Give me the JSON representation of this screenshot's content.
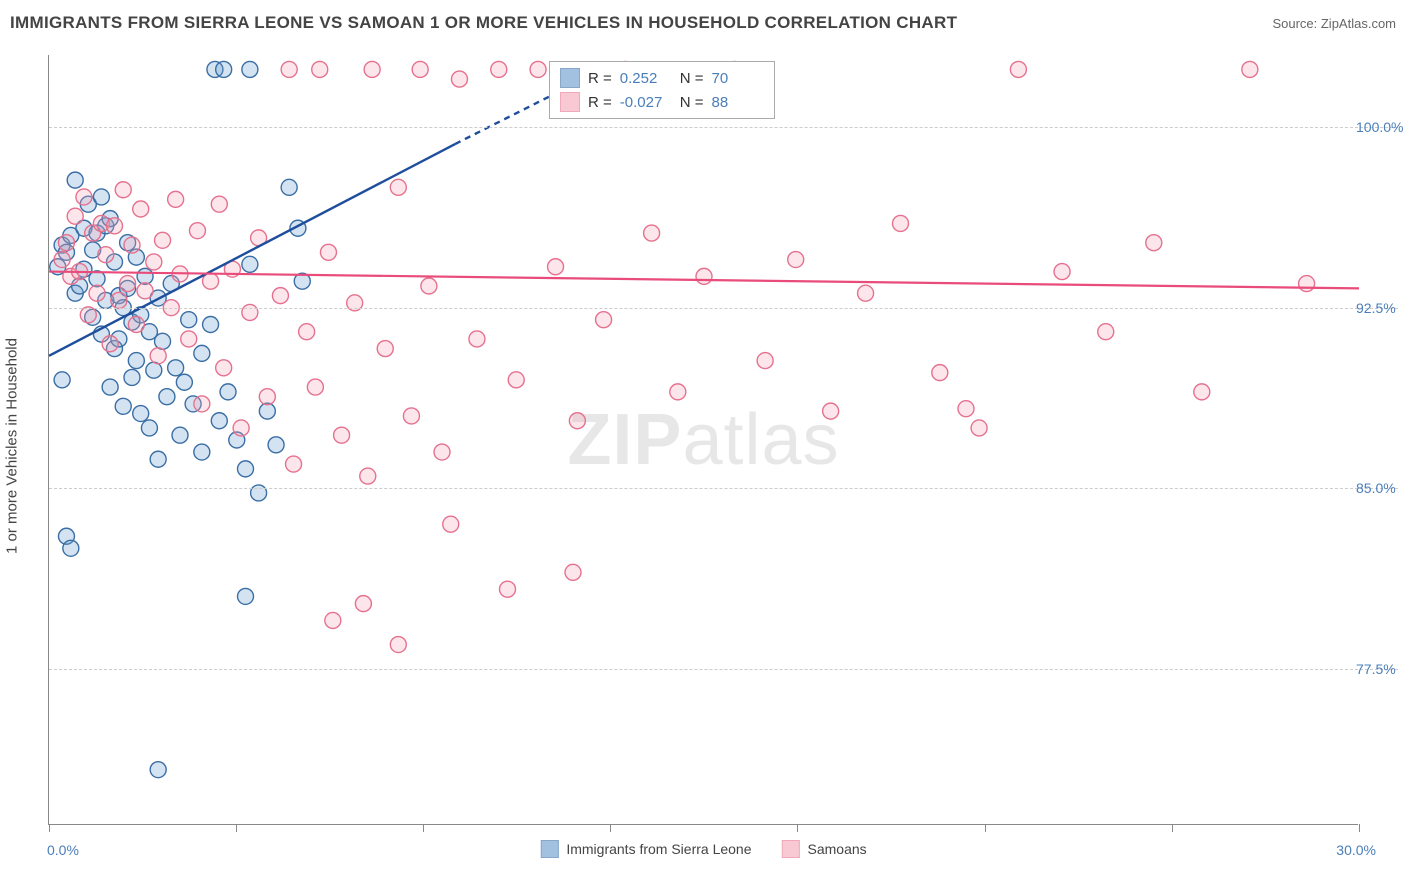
{
  "title": "IMMIGRANTS FROM SIERRA LEONE VS SAMOAN 1 OR MORE VEHICLES IN HOUSEHOLD CORRELATION CHART",
  "source": "Source: ZipAtlas.com",
  "watermark_bold": "ZIP",
  "watermark_rest": "atlas",
  "ylabel": "1 or more Vehicles in Household",
  "chart": {
    "type": "scatter",
    "background_color": "#ffffff",
    "grid_color": "#cccccc",
    "axis_color": "#888888",
    "label_color": "#4a7ebb",
    "text_color": "#444444",
    "xlim": [
      0,
      30
    ],
    "ylim": [
      71,
      103
    ],
    "xtick_labels": [
      "0.0%",
      "30.0%"
    ],
    "ytick_positions": [
      77.5,
      85.0,
      92.5,
      100.0
    ],
    "ytick_labels": [
      "77.5%",
      "85.0%",
      "92.5%",
      "100.0%"
    ],
    "xtick_positions": [
      0,
      4.28,
      8.57,
      12.85,
      17.14,
      21.43,
      25.71,
      30
    ],
    "marker_radius": 8,
    "marker_fill_opacity": 0.28,
    "marker_stroke_width": 1.4,
    "series": [
      {
        "name": "Immigrants from Sierra Leone",
        "color": "#6699cc",
        "stroke": "#3a6ea5",
        "R": "0.252",
        "N": "70",
        "regression": {
          "x1": 0,
          "y1": 90.5,
          "x2": 9.3,
          "y2": 99.3,
          "dash_from_x": 10.5,
          "dash_to_x": 12.8,
          "dash_to_y": 102.5,
          "stroke": "#1f4e9c",
          "width": 2.4
        },
        "points": [
          [
            0.2,
            94.2
          ],
          [
            0.3,
            95.1
          ],
          [
            0.4,
            94.8
          ],
          [
            0.5,
            95.5
          ],
          [
            0.6,
            97.8
          ],
          [
            0.6,
            93.1
          ],
          [
            0.7,
            93.4
          ],
          [
            0.8,
            95.8
          ],
          [
            0.8,
            94.1
          ],
          [
            0.9,
            96.8
          ],
          [
            1.0,
            92.1
          ],
          [
            1.0,
            94.9
          ],
          [
            1.1,
            95.6
          ],
          [
            1.1,
            93.7
          ],
          [
            1.2,
            91.4
          ],
          [
            1.2,
            97.1
          ],
          [
            1.3,
            95.9
          ],
          [
            1.3,
            92.8
          ],
          [
            1.4,
            89.2
          ],
          [
            1.4,
            96.2
          ],
          [
            1.5,
            94.4
          ],
          [
            1.5,
            90.8
          ],
          [
            1.6,
            93.0
          ],
          [
            1.6,
            91.2
          ],
          [
            1.7,
            92.5
          ],
          [
            1.7,
            88.4
          ],
          [
            1.8,
            95.2
          ],
          [
            1.8,
            93.3
          ],
          [
            1.9,
            91.9
          ],
          [
            1.9,
            89.6
          ],
          [
            2.0,
            94.6
          ],
          [
            2.0,
            90.3
          ],
          [
            2.1,
            92.2
          ],
          [
            2.1,
            88.1
          ],
          [
            2.2,
            93.8
          ],
          [
            2.3,
            91.5
          ],
          [
            2.3,
            87.5
          ],
          [
            2.4,
            89.9
          ],
          [
            2.5,
            92.9
          ],
          [
            2.5,
            86.2
          ],
          [
            2.6,
            91.1
          ],
          [
            2.7,
            88.8
          ],
          [
            2.8,
            93.5
          ],
          [
            2.9,
            90.0
          ],
          [
            3.0,
            87.2
          ],
          [
            3.1,
            89.4
          ],
          [
            3.2,
            92.0
          ],
          [
            3.3,
            88.5
          ],
          [
            3.5,
            90.6
          ],
          [
            3.5,
            86.5
          ],
          [
            3.7,
            91.8
          ],
          [
            3.9,
            87.8
          ],
          [
            4.1,
            89.0
          ],
          [
            4.3,
            87.0
          ],
          [
            4.5,
            85.8
          ],
          [
            4.8,
            84.8
          ],
          [
            5.0,
            88.2
          ],
          [
            5.2,
            86.8
          ],
          [
            3.8,
            102.4
          ],
          [
            4.0,
            102.4
          ],
          [
            4.6,
            102.4
          ],
          [
            2.5,
            73.3
          ],
          [
            0.4,
            83.0
          ],
          [
            0.5,
            82.5
          ],
          [
            4.5,
            80.5
          ],
          [
            4.6,
            94.3
          ],
          [
            5.5,
            97.5
          ],
          [
            5.7,
            95.8
          ],
          [
            5.8,
            93.6
          ],
          [
            0.3,
            89.5
          ]
        ]
      },
      {
        "name": "Samoans",
        "color": "#f4a6b7",
        "stroke": "#e6718f",
        "R": "-0.027",
        "N": "88",
        "regression": {
          "x1": 0,
          "y1": 94.0,
          "x2": 30,
          "y2": 93.3,
          "stroke": "#e94b7a",
          "width": 2.2
        },
        "points": [
          [
            0.3,
            94.5
          ],
          [
            0.4,
            95.2
          ],
          [
            0.5,
            93.8
          ],
          [
            0.6,
            96.3
          ],
          [
            0.7,
            94.0
          ],
          [
            0.8,
            97.1
          ],
          [
            0.9,
            92.2
          ],
          [
            1.0,
            95.6
          ],
          [
            1.1,
            93.1
          ],
          [
            1.2,
            96.0
          ],
          [
            1.3,
            94.7
          ],
          [
            1.4,
            91.0
          ],
          [
            1.5,
            95.9
          ],
          [
            1.6,
            92.8
          ],
          [
            1.7,
            97.4
          ],
          [
            1.8,
            93.5
          ],
          [
            1.9,
            95.1
          ],
          [
            2.0,
            91.8
          ],
          [
            2.1,
            96.6
          ],
          [
            2.2,
            93.2
          ],
          [
            2.4,
            94.4
          ],
          [
            2.5,
            90.5
          ],
          [
            2.6,
            95.3
          ],
          [
            2.8,
            92.5
          ],
          [
            2.9,
            97.0
          ],
          [
            3.0,
            93.9
          ],
          [
            3.2,
            91.2
          ],
          [
            3.4,
            95.7
          ],
          [
            3.5,
            88.5
          ],
          [
            3.7,
            93.6
          ],
          [
            3.9,
            96.8
          ],
          [
            4.0,
            90.0
          ],
          [
            4.2,
            94.1
          ],
          [
            4.4,
            87.5
          ],
          [
            4.6,
            92.3
          ],
          [
            4.8,
            95.4
          ],
          [
            5.0,
            88.8
          ],
          [
            5.3,
            93.0
          ],
          [
            5.6,
            86.0
          ],
          [
            5.9,
            91.5
          ],
          [
            6.1,
            89.2
          ],
          [
            6.4,
            94.8
          ],
          [
            6.7,
            87.2
          ],
          [
            7.0,
            92.7
          ],
          [
            7.3,
            85.5
          ],
          [
            7.7,
            90.8
          ],
          [
            8.0,
            97.5
          ],
          [
            8.3,
            88.0
          ],
          [
            8.7,
            93.4
          ],
          [
            9.0,
            86.5
          ],
          [
            9.4,
            102.0
          ],
          [
            9.8,
            91.2
          ],
          [
            10.3,
            102.4
          ],
          [
            10.7,
            89.5
          ],
          [
            11.2,
            102.4
          ],
          [
            11.6,
            94.2
          ],
          [
            12.1,
            87.8
          ],
          [
            12.7,
            92.0
          ],
          [
            13.2,
            102.4
          ],
          [
            13.8,
            95.6
          ],
          [
            14.4,
            89.0
          ],
          [
            15.0,
            93.8
          ],
          [
            15.7,
            102.4
          ],
          [
            16.4,
            90.3
          ],
          [
            17.1,
            94.5
          ],
          [
            17.9,
            88.2
          ],
          [
            18.7,
            93.1
          ],
          [
            19.5,
            96.0
          ],
          [
            20.4,
            89.8
          ],
          [
            21.0,
            88.3
          ],
          [
            21.3,
            87.5
          ],
          [
            22.2,
            102.4
          ],
          [
            23.2,
            94.0
          ],
          [
            24.2,
            91.5
          ],
          [
            25.3,
            95.2
          ],
          [
            26.4,
            89.0
          ],
          [
            27.5,
            102.4
          ],
          [
            28.8,
            93.5
          ],
          [
            6.5,
            79.5
          ],
          [
            7.2,
            80.2
          ],
          [
            8.0,
            78.5
          ],
          [
            9.2,
            83.5
          ],
          [
            10.5,
            80.8
          ],
          [
            12.0,
            81.5
          ],
          [
            5.5,
            102.4
          ],
          [
            6.2,
            102.4
          ],
          [
            7.4,
            102.4
          ],
          [
            8.5,
            102.4
          ]
        ]
      }
    ]
  },
  "legend": {
    "series1_label": "Immigrants from Sierra Leone",
    "series2_label": "Samoans"
  },
  "corr_box": {
    "r_label": "R =",
    "n_label": "N ="
  }
}
